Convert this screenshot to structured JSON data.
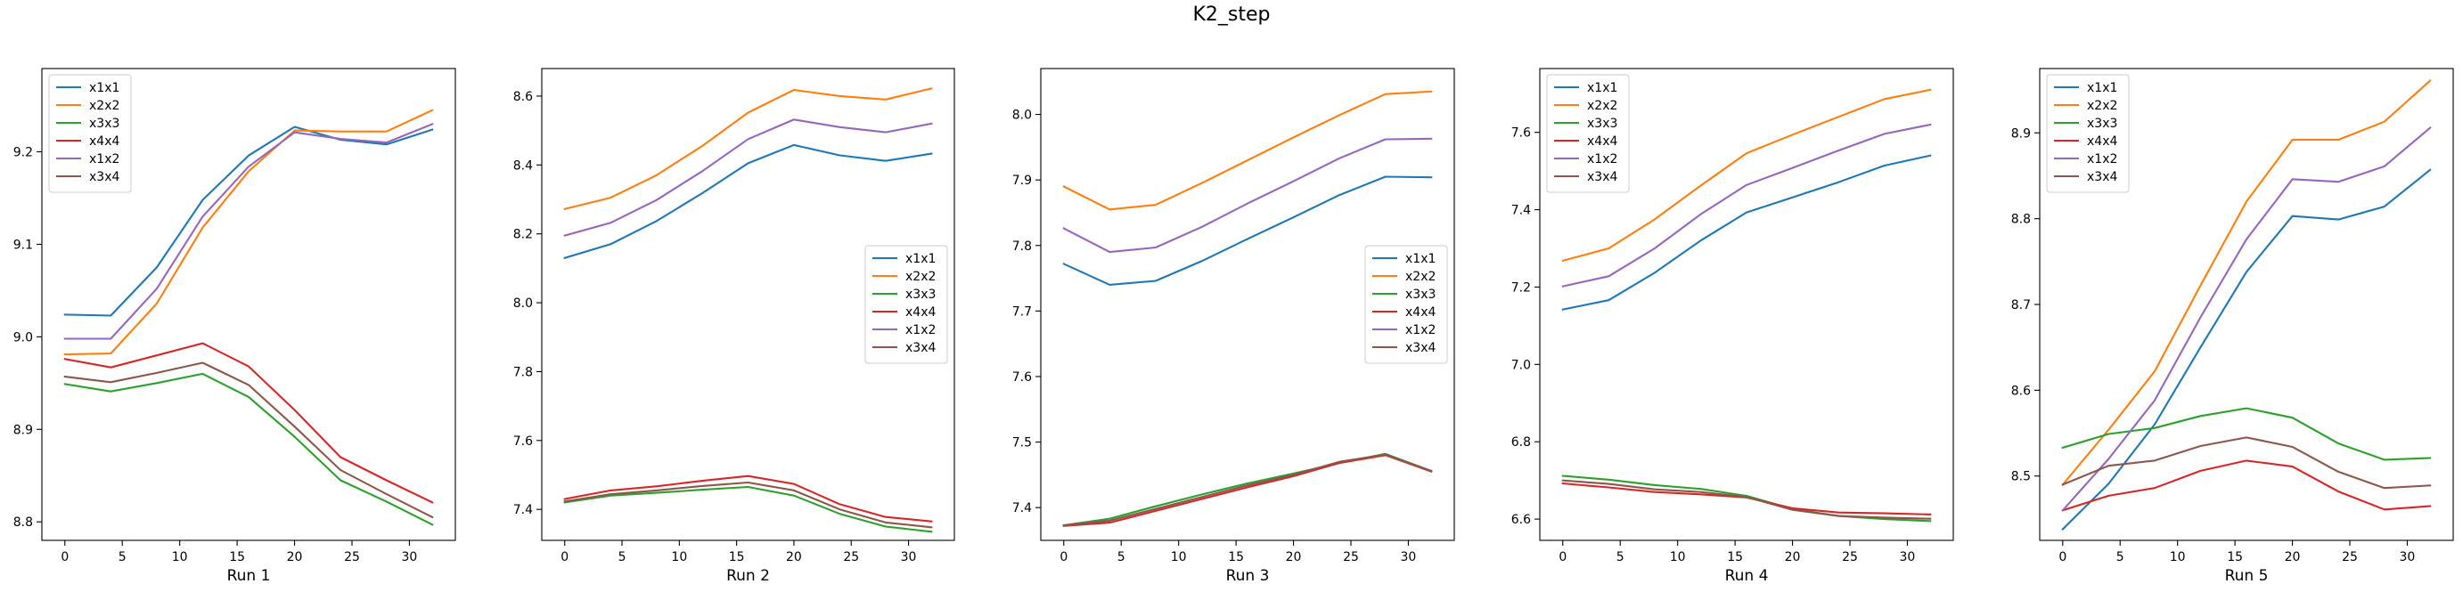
{
  "figure": {
    "title": "K2_step"
  },
  "chart_data": [
    {
      "type": "line",
      "xlabel": "Run 1",
      "x": [
        0,
        4,
        8,
        12,
        16,
        20,
        24,
        28,
        32
      ],
      "xlim": [
        -2,
        34
      ],
      "ylim": [
        8.78,
        9.29
      ],
      "xticks": [
        0,
        5,
        10,
        15,
        20,
        25,
        30
      ],
      "yticks": [
        8.8,
        8.9,
        9.0,
        9.1,
        9.2
      ],
      "ytick_decimals": 1,
      "legend_loc": "upper left",
      "series": [
        {
          "name": "x1x1",
          "color": "#1f77b4",
          "values": [
            9.024,
            9.023,
            9.075,
            9.148,
            9.196,
            9.227,
            9.213,
            9.208,
            9.224
          ]
        },
        {
          "name": "x2x2",
          "color": "#ff7f0e",
          "values": [
            8.981,
            8.982,
            9.036,
            9.118,
            9.179,
            9.223,
            9.222,
            9.222,
            9.245
          ]
        },
        {
          "name": "x3x3",
          "color": "#2ca02c",
          "values": [
            8.949,
            8.941,
            8.95,
            8.96,
            8.935,
            8.892,
            8.845,
            8.822,
            8.797
          ]
        },
        {
          "name": "x4x4",
          "color": "#d62728",
          "values": [
            8.976,
            8.967,
            8.98,
            8.993,
            8.968,
            8.921,
            8.87,
            8.845,
            8.821
          ]
        },
        {
          "name": "x1x2",
          "color": "#9467bd",
          "values": [
            8.998,
            8.998,
            9.052,
            9.13,
            9.184,
            9.221,
            9.214,
            9.21,
            9.23
          ]
        },
        {
          "name": "x3x4",
          "color": "#8c564b",
          "values": [
            8.957,
            8.951,
            8.961,
            8.972,
            8.948,
            8.903,
            8.856,
            8.83,
            8.805
          ]
        }
      ]
    },
    {
      "type": "line",
      "xlabel": "Run 2",
      "x": [
        0,
        4,
        8,
        12,
        16,
        20,
        24,
        28,
        32
      ],
      "xlim": [
        -2,
        34
      ],
      "ylim": [
        7.31,
        8.68
      ],
      "xticks": [
        0,
        5,
        10,
        15,
        20,
        25,
        30
      ],
      "yticks": [
        7.4,
        7.6,
        7.8,
        8.0,
        8.2,
        8.4,
        8.6
      ],
      "ytick_decimals": 1,
      "legend_loc": "center right",
      "series": [
        {
          "name": "x1x1",
          "color": "#1f77b4",
          "values": [
            8.13,
            8.17,
            8.237,
            8.318,
            8.405,
            8.458,
            8.428,
            8.412,
            8.433
          ]
        },
        {
          "name": "x2x2",
          "color": "#ff7f0e",
          "values": [
            8.272,
            8.305,
            8.37,
            8.455,
            8.552,
            8.618,
            8.6,
            8.59,
            8.622
          ]
        },
        {
          "name": "x3x3",
          "color": "#2ca02c",
          "values": [
            7.42,
            7.44,
            7.448,
            7.457,
            7.465,
            7.44,
            7.387,
            7.35,
            7.335
          ]
        },
        {
          "name": "x4x4",
          "color": "#d62728",
          "values": [
            7.43,
            7.455,
            7.467,
            7.483,
            7.497,
            7.474,
            7.415,
            7.378,
            7.365
          ]
        },
        {
          "name": "x1x2",
          "color": "#9467bd",
          "values": [
            8.195,
            8.232,
            8.298,
            8.382,
            8.475,
            8.532,
            8.51,
            8.495,
            8.52
          ]
        },
        {
          "name": "x3x4",
          "color": "#8c564b",
          "values": [
            7.423,
            7.444,
            7.455,
            7.468,
            7.478,
            7.455,
            7.4,
            7.362,
            7.348
          ]
        }
      ]
    },
    {
      "type": "line",
      "xlabel": "Run 3",
      "x": [
        0,
        4,
        8,
        12,
        16,
        20,
        24,
        28,
        32
      ],
      "xlim": [
        -2,
        34
      ],
      "ylim": [
        7.35,
        8.07
      ],
      "xticks": [
        0,
        5,
        10,
        15,
        20,
        25,
        30
      ],
      "yticks": [
        7.4,
        7.5,
        7.6,
        7.7,
        7.8,
        7.9,
        8.0
      ],
      "ytick_decimals": 1,
      "legend_loc": "center right",
      "series": [
        {
          "name": "x1x1",
          "color": "#1f77b4",
          "values": [
            7.772,
            7.74,
            7.746,
            7.776,
            7.81,
            7.843,
            7.877,
            7.905,
            7.904
          ]
        },
        {
          "name": "x2x2",
          "color": "#ff7f0e",
          "values": [
            7.89,
            7.855,
            7.862,
            7.895,
            7.93,
            7.965,
            7.999,
            8.031,
            8.035
          ]
        },
        {
          "name": "x3x3",
          "color": "#2ca02c",
          "values": [
            7.373,
            7.383,
            7.402,
            7.42,
            7.437,
            7.452,
            7.468,
            7.482,
            7.456
          ]
        },
        {
          "name": "x4x4",
          "color": "#d62728",
          "values": [
            7.372,
            7.377,
            7.395,
            7.413,
            7.431,
            7.448,
            7.468,
            7.48,
            7.455
          ]
        },
        {
          "name": "x1x2",
          "color": "#9467bd",
          "values": [
            7.826,
            7.79,
            7.797,
            7.828,
            7.864,
            7.898,
            7.933,
            7.962,
            7.963
          ]
        },
        {
          "name": "x3x4",
          "color": "#8c564b",
          "values": [
            7.373,
            7.38,
            7.398,
            7.416,
            7.434,
            7.45,
            7.47,
            7.481,
            7.456
          ]
        }
      ]
    },
    {
      "type": "line",
      "xlabel": "Run 4",
      "x": [
        0,
        4,
        8,
        12,
        16,
        20,
        24,
        28,
        32
      ],
      "xlim": [
        -2,
        34
      ],
      "ylim": [
        6.545,
        7.765
      ],
      "xticks": [
        0,
        5,
        10,
        15,
        20,
        25,
        30
      ],
      "yticks": [
        6.6,
        6.8,
        7.0,
        7.2,
        7.4,
        7.6
      ],
      "ytick_decimals": 1,
      "legend_loc": "upper left",
      "series": [
        {
          "name": "x1x1",
          "color": "#1f77b4",
          "values": [
            7.142,
            7.166,
            7.237,
            7.32,
            7.393,
            7.432,
            7.471,
            7.514,
            7.54
          ]
        },
        {
          "name": "x2x2",
          "color": "#ff7f0e",
          "values": [
            7.268,
            7.3,
            7.375,
            7.462,
            7.546,
            7.594,
            7.64,
            7.686,
            7.71
          ]
        },
        {
          "name": "x3x3",
          "color": "#2ca02c",
          "values": [
            6.712,
            6.702,
            6.688,
            6.678,
            6.66,
            6.626,
            6.608,
            6.6,
            6.595
          ]
        },
        {
          "name": "x4x4",
          "color": "#d62728",
          "values": [
            6.692,
            6.682,
            6.67,
            6.664,
            6.656,
            6.628,
            6.617,
            6.615,
            6.612
          ]
        },
        {
          "name": "x1x2",
          "color": "#9467bd",
          "values": [
            7.202,
            7.228,
            7.3,
            7.388,
            7.464,
            7.508,
            7.553,
            7.596,
            7.62
          ]
        },
        {
          "name": "x3x4",
          "color": "#8c564b",
          "values": [
            6.7,
            6.691,
            6.677,
            6.67,
            6.657,
            6.624,
            6.608,
            6.604,
            6.601
          ]
        }
      ]
    },
    {
      "type": "line",
      "xlabel": "Run 5",
      "x": [
        0,
        4,
        8,
        12,
        16,
        20,
        24,
        28,
        32
      ],
      "xlim": [
        -2,
        34
      ],
      "ylim": [
        8.425,
        8.975
      ],
      "xticks": [
        0,
        5,
        10,
        15,
        20,
        25,
        30
      ],
      "yticks": [
        8.5,
        8.6,
        8.7,
        8.8,
        8.9
      ],
      "ytick_decimals": 1,
      "legend_loc": "upper left",
      "series": [
        {
          "name": "x1x1",
          "color": "#1f77b4",
          "values": [
            8.438,
            8.491,
            8.56,
            8.65,
            8.738,
            8.803,
            8.799,
            8.814,
            8.857
          ]
        },
        {
          "name": "x2x2",
          "color": "#ff7f0e",
          "values": [
            8.49,
            8.554,
            8.622,
            8.722,
            8.82,
            8.892,
            8.892,
            8.913,
            8.961
          ]
        },
        {
          "name": "x3x3",
          "color": "#2ca02c",
          "values": [
            8.533,
            8.549,
            8.556,
            8.57,
            8.579,
            8.568,
            8.538,
            8.519,
            8.521
          ]
        },
        {
          "name": "x4x4",
          "color": "#d62728",
          "values": [
            8.46,
            8.477,
            8.486,
            8.506,
            8.518,
            8.511,
            8.482,
            8.461,
            8.465
          ]
        },
        {
          "name": "x1x2",
          "color": "#9467bd",
          "values": [
            8.46,
            8.52,
            8.588,
            8.685,
            8.776,
            8.846,
            8.843,
            8.861,
            8.906
          ]
        },
        {
          "name": "x3x4",
          "color": "#8c564b",
          "values": [
            8.49,
            8.512,
            8.518,
            8.535,
            8.545,
            8.534,
            8.505,
            8.486,
            8.489
          ]
        }
      ]
    }
  ]
}
